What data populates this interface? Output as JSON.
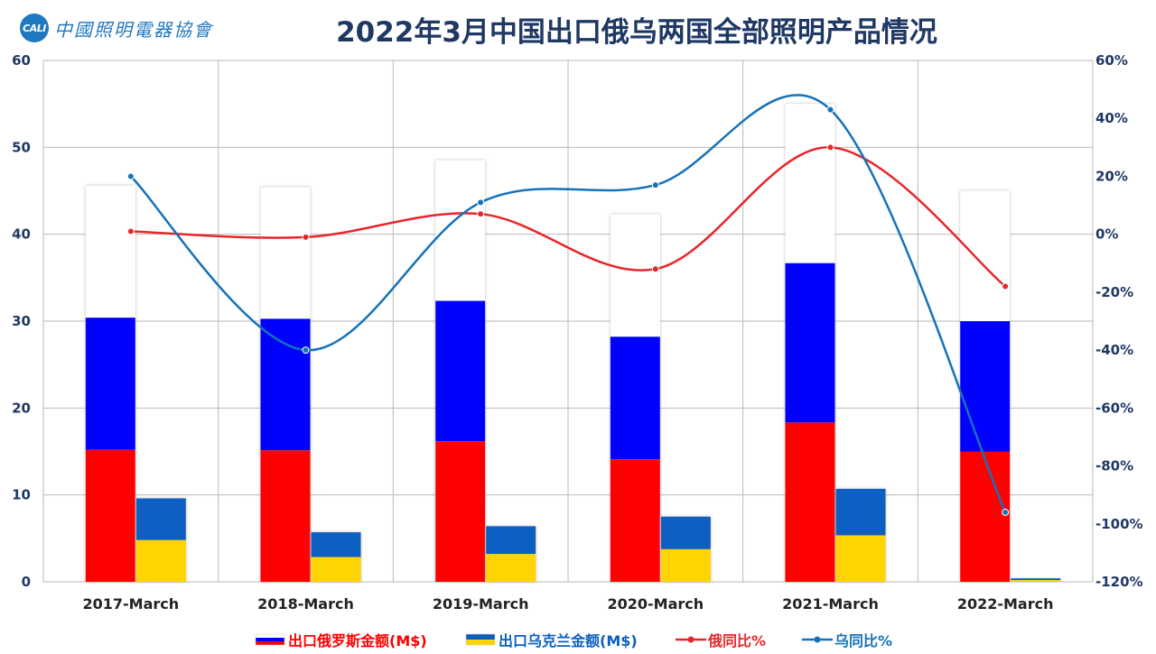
{
  "header": {
    "logo_mark": "CALI",
    "logo_text": "中國照明電器協會",
    "title": "2022年3月中国出口俄乌两国全部照明产品情况"
  },
  "chart_data": {
    "type": "bar",
    "categories": [
      "2017-March",
      "2018-March",
      "2019-March",
      "2020-March",
      "2021-March",
      "2022-March"
    ],
    "y_left": {
      "ylim": [
        0,
        60
      ],
      "ticks": [
        0,
        10,
        20,
        30,
        40,
        50,
        60
      ]
    },
    "y_right": {
      "ylim": [
        -120,
        60
      ],
      "ticks": [
        "-120%",
        "-100%",
        "-80%",
        "-60%",
        "-40%",
        "-20%",
        "0%",
        "20%",
        "40%",
        "60%"
      ],
      "tick_values": [
        -120,
        -100,
        -80,
        -60,
        -40,
        -20,
        0,
        20,
        40,
        60
      ]
    },
    "grid": true,
    "legend_position": "bottom",
    "series": [
      {
        "name": "出口俄罗斯金额(M$)",
        "type": "bar",
        "axis": "left",
        "values": [
          45.6,
          45.4,
          48.5,
          42.3,
          55.0,
          45.0
        ]
      },
      {
        "name": "出口乌克兰金额(M$)",
        "type": "bar",
        "axis": "left",
        "values": [
          9.6,
          5.7,
          6.4,
          7.5,
          10.7,
          0.4
        ]
      },
      {
        "name": "俄同比%",
        "type": "line",
        "axis": "right",
        "values": [
          1,
          -1,
          7,
          -12,
          30,
          -18
        ]
      },
      {
        "name": "乌同比%",
        "type": "line",
        "axis": "right",
        "values": [
          20,
          -40,
          11,
          17,
          43,
          -96
        ]
      }
    ],
    "colors": {
      "russia_white": "#ffffff",
      "russia_blue": "#0000ff",
      "russia_red": "#ff0000",
      "ukraine_blue": "#0a5fc1",
      "ukraine_yellow": "#ffd400",
      "line_russia": "#e8262b",
      "line_ukraine": "#1672b9",
      "axis_left": "#1f3864",
      "axis_right": "#1f3864",
      "grid": "#b9b9b9"
    }
  }
}
